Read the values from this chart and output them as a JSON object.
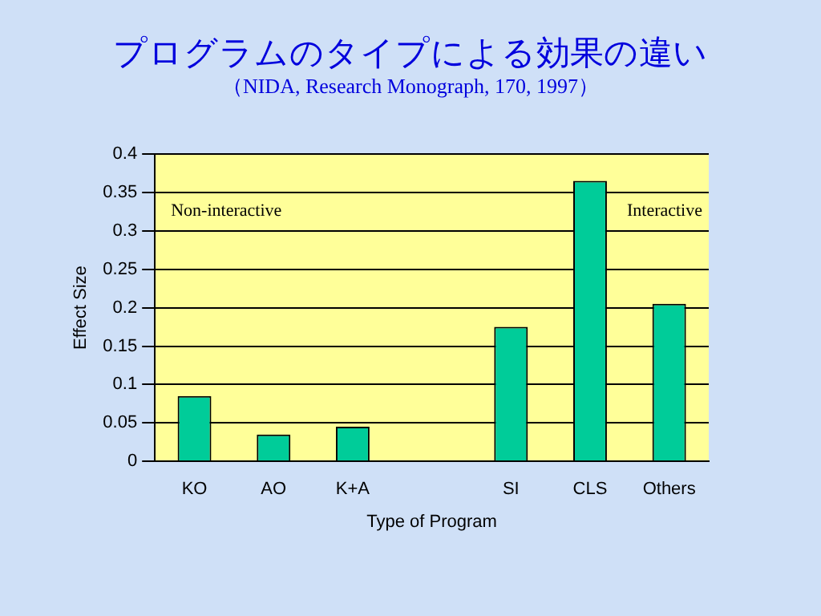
{
  "chart_data": {
    "type": "bar",
    "title": "プログラムのタイプによる効果の違い",
    "subtitle": "（NIDA, Research Monograph, 170, 1997）",
    "xlabel": "Type of Program",
    "ylabel": "Effect Size",
    "categories": [
      "KO",
      "AO",
      "K+A",
      null,
      "SI",
      "CLS",
      "Others"
    ],
    "values": [
      0.085,
      0.035,
      0.045,
      null,
      0.175,
      0.365,
      0.205
    ],
    "color": "#00cc99",
    "ylim": [
      0,
      0.4
    ],
    "yticks": [
      0,
      0.05,
      0.1,
      0.15,
      0.2,
      0.25,
      0.3,
      0.35,
      0.4
    ],
    "grid": "y",
    "legend": false,
    "annotations": [
      "Non-interactive",
      "Interactive"
    ]
  }
}
